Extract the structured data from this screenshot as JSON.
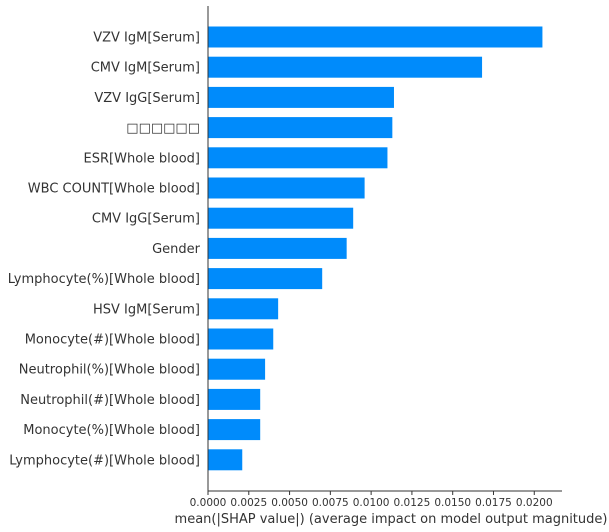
{
  "chart_data": {
    "type": "bar",
    "orientation": "horizontal",
    "categories": [
      "VZV IgM[Serum]",
      "CMV IgM[Serum]",
      "VZV IgG[Serum]",
      "□□□□□□",
      "ESR[Whole blood]",
      "WBC COUNT[Whole blood]",
      "CMV IgG[Serum]",
      "Gender",
      "Lymphocyte(%)[Whole blood]",
      "HSV IgM[Serum]",
      "Monocyte(#)[Whole blood]",
      "Neutrophil(%)[Whole blood]",
      "Neutrophil(#)[Whole blood]",
      "Monocyte(%)[Whole blood]",
      "Lymphocyte(#)[Whole blood]"
    ],
    "values": [
      0.0205,
      0.0168,
      0.0114,
      0.0113,
      0.011,
      0.0096,
      0.0089,
      0.0085,
      0.007,
      0.0043,
      0.004,
      0.0035,
      0.0032,
      0.0032,
      0.0021
    ],
    "xlabel": "mean(|SHAP value|) (average impact on model output magnitude)",
    "xlim": [
      0,
      0.0217
    ],
    "xticks": [
      "0.0000",
      "0.0025",
      "0.0050",
      "0.0075",
      "0.0100",
      "0.0125",
      "0.0150",
      "0.0175",
      "0.0200"
    ],
    "xtick_values": [
      0,
      0.0025,
      0.005,
      0.0075,
      0.01,
      0.0125,
      0.015,
      0.0175,
      0.02
    ],
    "bar_color": "#008bfb",
    "grid": false
  }
}
